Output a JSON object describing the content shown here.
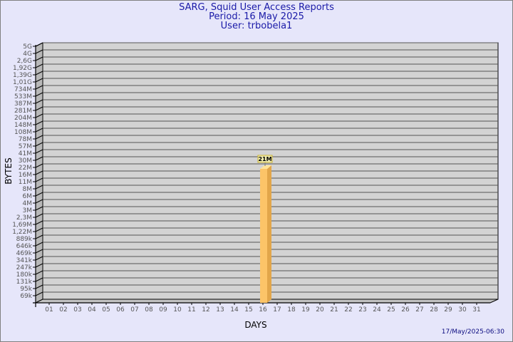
{
  "header": {
    "title": "SARG, Squid User Access Reports",
    "period": "Period: 16 May 2025",
    "user": "User: trbobela1"
  },
  "footer": {
    "timestamp": "17/May/2025-06:30"
  },
  "colors": {
    "plot_bg": "#d3d3d3",
    "bar_front": "#fcc468",
    "bar_side": "#e2a64a",
    "bar_top": "#ffe39a",
    "label_bg": "#f2eeb0",
    "title": "#1a1aa8"
  },
  "chart_data": {
    "type": "bar",
    "title": "SARG, Squid User Access Reports",
    "xlabel": "DAYS",
    "ylabel": "BYTES",
    "y_scale": "non-linear (SARG level scale)",
    "y_ticks": [
      "5G",
      "4G",
      "2,6G",
      "1,92G",
      "1,39G",
      "1,01G",
      "734M",
      "533M",
      "387M",
      "281M",
      "204M",
      "148M",
      "108M",
      "78M",
      "57M",
      "41M",
      "30M",
      "22M",
      "16M",
      "11M",
      "8M",
      "6M",
      "4M",
      "3M",
      "2,3M",
      "1,69M",
      "1,22M",
      "889k",
      "646k",
      "469k",
      "341k",
      "247k",
      "180k",
      "131k",
      "95k",
      "69k"
    ],
    "categories": [
      "01",
      "02",
      "03",
      "04",
      "05",
      "06",
      "07",
      "08",
      "09",
      "10",
      "11",
      "12",
      "13",
      "14",
      "15",
      "16",
      "17",
      "18",
      "19",
      "20",
      "21",
      "22",
      "23",
      "24",
      "25",
      "26",
      "27",
      "28",
      "29",
      "30",
      "31"
    ],
    "series": [
      {
        "values": [
          0,
          0,
          0,
          0,
          0,
          0,
          0,
          0,
          0,
          0,
          0,
          0,
          0,
          0,
          0,
          "21M",
          0,
          0,
          0,
          0,
          0,
          0,
          0,
          0,
          0,
          0,
          0,
          0,
          0,
          0,
          0
        ]
      }
    ],
    "data_labels": [
      {
        "category": "16",
        "label": "21M"
      }
    ],
    "grid": true,
    "legend": "none"
  }
}
